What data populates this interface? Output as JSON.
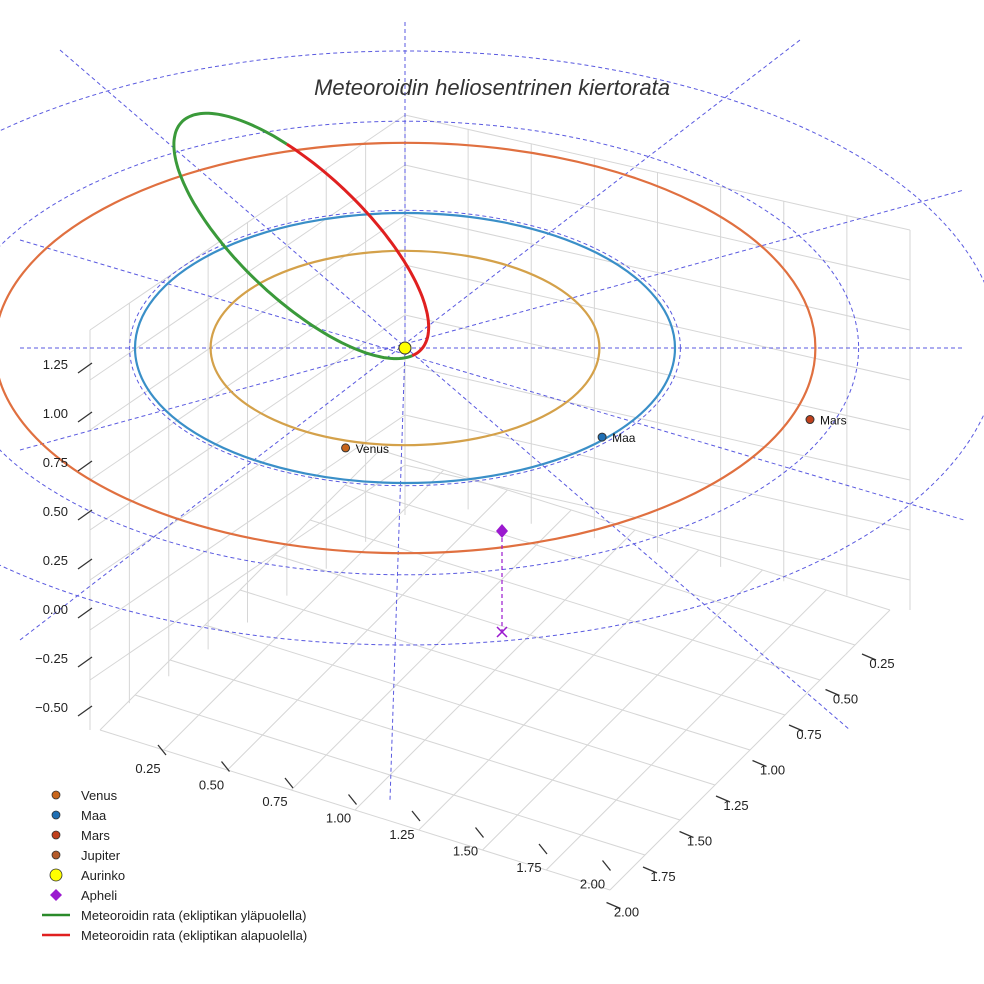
{
  "chart_data": {
    "type": "scatter3d",
    "title": "Meteoroidin heliosentrinen kiertorata",
    "axes": {
      "x_ticks": [
        "0.25",
        "0.50",
        "0.75",
        "1.00",
        "1.25",
        "1.50",
        "1.75",
        "2.00"
      ],
      "y_ticks": [
        "0.25",
        "0.50",
        "0.75",
        "1.00",
        "1.25",
        "1.50",
        "1.75",
        "2.00"
      ],
      "z_ticks": [
        "1.25",
        "1.00",
        "0.75",
        "0.50",
        "0.25",
        "0.00",
        "−0.25",
        "−0.50"
      ],
      "grid": true
    },
    "orbits": [
      {
        "name": "Venus",
        "radius_au": 0.72,
        "color": "#d4a14a"
      },
      {
        "name": "Maa",
        "radius_au": 1.0,
        "color": "#3a8fc8"
      },
      {
        "name": "Mars",
        "radius_au": 1.52,
        "color": "#e07040"
      }
    ],
    "bodies": [
      {
        "name": "Venus",
        "label": "Venus",
        "color": "#c8651b"
      },
      {
        "name": "Maa",
        "label": "Maa",
        "color": "#1f6fb4"
      },
      {
        "name": "Mars",
        "label": "Mars",
        "color": "#c0401c"
      },
      {
        "name": "Aurinko",
        "label": "",
        "color": "#ffff00"
      }
    ],
    "meteoroid_orbit": {
      "perihelion_au": 0.05,
      "aphelion_au": 1.5,
      "above_ecliptic_color": "#3a9a3a",
      "below_ecliptic_color": "#e02020"
    },
    "apheli": {
      "label": "Apheli",
      "color": "#9b19cf"
    },
    "legend": {
      "position": "bottom-left",
      "items": [
        {
          "label": "Venus",
          "symbol": "circle",
          "color": "#c8651b"
        },
        {
          "label": "Maa",
          "symbol": "circle",
          "color": "#1f6fb4"
        },
        {
          "label": "Mars",
          "symbol": "circle",
          "color": "#c0401c"
        },
        {
          "label": "Jupiter",
          "symbol": "circle",
          "color": "#b35a2a"
        },
        {
          "label": "Aurinko",
          "symbol": "circle",
          "color": "#ffff00"
        },
        {
          "label": "Apheli",
          "symbol": "diamond",
          "color": "#9b19cf"
        },
        {
          "label": "Meteoroidin rata (ekliptikan yläpuolella)",
          "symbol": "line",
          "color": "#2a8a2a"
        },
        {
          "label": "Meteoroidin rata (ekliptikan alapuolella)",
          "symbol": "line",
          "color": "#e02020"
        }
      ]
    }
  }
}
